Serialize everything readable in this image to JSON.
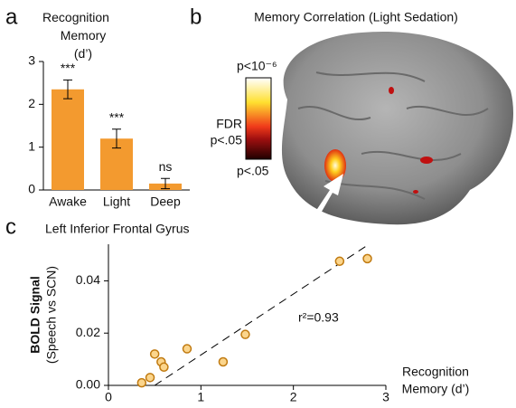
{
  "panel_labels": [
    "a",
    "b",
    "c"
  ],
  "brain_panel": {
    "title": "Memory Correlation (Light Sedation)",
    "colorbar_top": "p<10⁻⁶",
    "colorbar_mid": "FDR",
    "colorbar_mid2": "p<.05",
    "colorbar_bottom": "p<.05"
  },
  "chart_data": [
    {
      "type": "bar",
      "title": "Recognition Memory (d’)",
      "categories": [
        "Awake",
        "Light",
        "Deep"
      ],
      "values": [
        2.35,
        1.2,
        0.15
      ],
      "errors": [
        0.22,
        0.22,
        0.12
      ],
      "annotations": [
        "***",
        "***",
        "ns"
      ],
      "color": "#f39a2f",
      "ylim": [
        0,
        3
      ],
      "yticks": [
        0,
        1,
        2,
        3
      ]
    },
    {
      "type": "scatter",
      "title": "Left Inferior Frontal Gyrus",
      "y_label": "BOLD Signal",
      "y_label2": "(Speech vs SCN)",
      "x_label": "Recognition",
      "x_label2": "Memory (d’)",
      "annotation": "r²=0.93",
      "x": [
        0.36,
        0.45,
        0.5,
        0.57,
        0.6,
        0.85,
        1.24,
        1.48,
        2.5,
        2.8
      ],
      "values": [
        0.001,
        0.003,
        0.012,
        0.009,
        0.007,
        0.014,
        0.009,
        0.0195,
        0.0475,
        0.0485
      ],
      "trendline": {
        "x": [
          0.5,
          2.8
        ],
        "y": [
          0,
          0.0536
        ]
      },
      "color": "#fbd58c",
      "xlim": [
        0,
        3
      ],
      "ylim": [
        0,
        0.054
      ],
      "xticks": [
        0,
        1,
        2,
        3
      ],
      "yticks": [
        {
          "value": 0,
          "label": "0.00"
        },
        {
          "value": 0.02,
          "label": "0.02"
        },
        {
          "value": 0.04,
          "label": "0.04"
        }
      ]
    }
  ]
}
